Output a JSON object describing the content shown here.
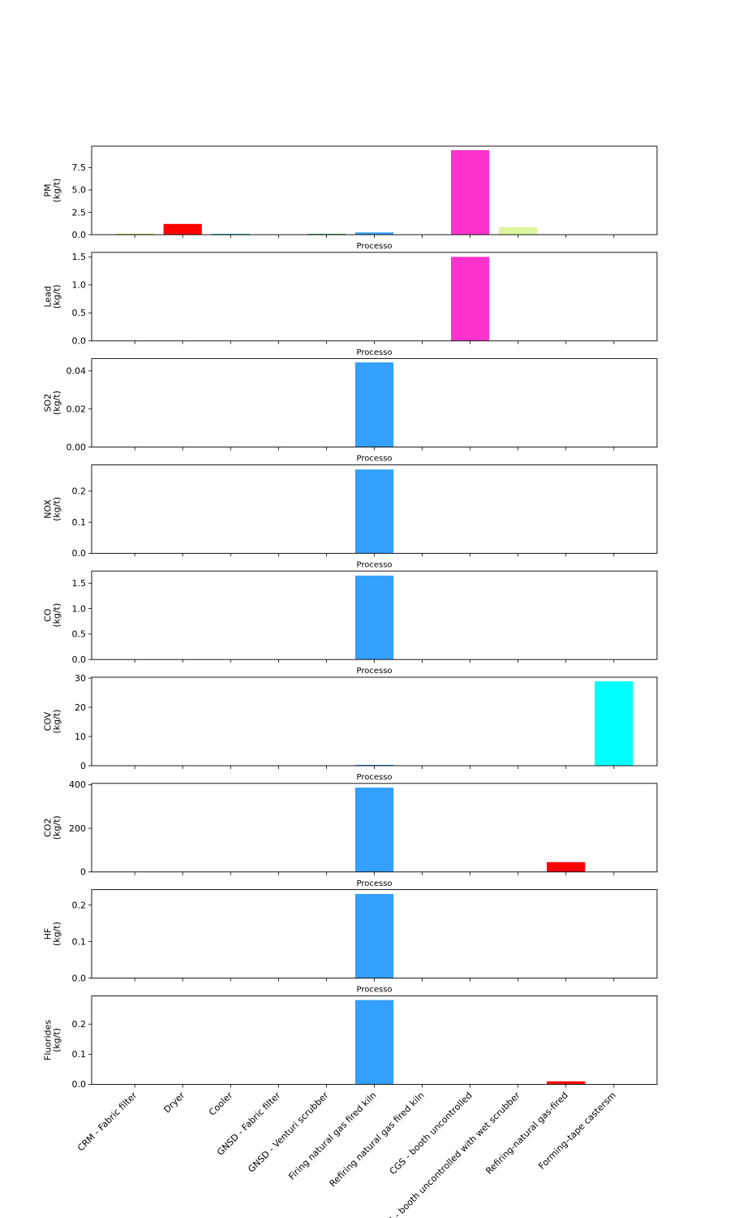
{
  "chart_data": {
    "type": "bar",
    "categories": [
      "CRM - Fabric filter",
      "Dryer",
      "Cooler",
      "GNSD - Fabric filter",
      "GNSD - Venturi scrubber",
      "Firing natural gas fired kiln",
      "Refiring  natural gas fired kiln",
      "CGS - booth uncontrolled",
      "CGS - booth uncontrolled with wet scrubber",
      "Refiring-natural gas-fired",
      "Forming–tape castersm"
    ],
    "colors": [
      "#aacc00",
      "#ff0000",
      "#00aacc",
      "#8800cc",
      "#22aa44",
      "#339fff",
      "#9933cc",
      "#ff33cc",
      "#ddf5a0",
      "#ff0000",
      "#00ffff"
    ],
    "shared_xlabel": "Processo",
    "subplots": [
      {
        "ylabel": "PM\n(kg/t)",
        "ylim": [
          0,
          9.9
        ],
        "ticks": [
          0.0,
          2.5,
          5.0,
          7.5
        ],
        "tick_labels": [
          "0.0",
          "2.5",
          "5.0",
          "7.5"
        ],
        "values": [
          0.03,
          1.2,
          0.04,
          0,
          0.03,
          0.25,
          0,
          9.45,
          0.85,
          0,
          0
        ]
      },
      {
        "ylabel": "Lead\n(kg/t)",
        "ylim": [
          0,
          1.58
        ],
        "ticks": [
          0.0,
          0.5,
          1.0,
          1.5
        ],
        "tick_labels": [
          "0.0",
          "0.5",
          "1.0",
          "1.5"
        ],
        "values": [
          0,
          0,
          0,
          0,
          0,
          0,
          0,
          1.5,
          0,
          0,
          0
        ]
      },
      {
        "ylabel": "SO2\n(kg/t)",
        "ylim": [
          0,
          0.0465
        ],
        "ticks": [
          0.0,
          0.02,
          0.04
        ],
        "tick_labels": [
          "0.00",
          "0.02",
          "0.04"
        ],
        "values": [
          0,
          0,
          0,
          0,
          0,
          0.0445,
          0,
          0,
          0,
          0,
          0
        ]
      },
      {
        "ylabel": "NOX\n(kg/t)",
        "ylim": [
          0,
          0.285
        ],
        "ticks": [
          0.0,
          0.1,
          0.2
        ],
        "tick_labels": [
          "0.0",
          "0.1",
          "0.2"
        ],
        "values": [
          0,
          0,
          0,
          0,
          0,
          0.27,
          0,
          0,
          0,
          0,
          0
        ]
      },
      {
        "ylabel": "CO\n(kg/t)",
        "ylim": [
          0,
          1.74
        ],
        "ticks": [
          0.0,
          0.5,
          1.0,
          1.5
        ],
        "tick_labels": [
          "0.0",
          "0.5",
          "1.0",
          "1.5"
        ],
        "values": [
          0,
          0,
          0,
          0,
          0,
          1.65,
          0,
          0,
          0,
          0,
          0
        ]
      },
      {
        "ylabel": "COV\n(kg/t)",
        "ylim": [
          0,
          30.3
        ],
        "ticks": [
          0,
          10,
          20,
          30
        ],
        "tick_labels": [
          "0",
          "10",
          "20",
          "30"
        ],
        "values": [
          0,
          0,
          0,
          0,
          0,
          0.3,
          0,
          0,
          0,
          0,
          28.9
        ]
      },
      {
        "ylabel": "CO2\n(kg/t)",
        "ylim": [
          0,
          406
        ],
        "ticks": [
          0,
          200,
          400
        ],
        "tick_labels": [
          "0",
          "200",
          "400"
        ],
        "values": [
          0,
          0,
          0,
          0,
          0,
          387,
          0,
          0,
          0,
          45,
          0
        ]
      },
      {
        "ylabel": "HF\n(kg/t)",
        "ylim": [
          0,
          0.242
        ],
        "ticks": [
          0.0,
          0.1,
          0.2
        ],
        "tick_labels": [
          "0.0",
          "0.1",
          "0.2"
        ],
        "values": [
          0,
          0,
          0,
          0,
          0,
          0.23,
          0,
          0,
          0,
          0,
          0
        ]
      },
      {
        "ylabel": "Fluorides\n(kg/t)",
        "ylim": [
          0,
          0.294
        ],
        "ticks": [
          0.0,
          0.1,
          0.2
        ],
        "tick_labels": [
          "0.0",
          "0.1",
          "0.2"
        ],
        "values": [
          0,
          0,
          0,
          0,
          0,
          0.28,
          0,
          0,
          0,
          0.01,
          0
        ]
      }
    ]
  }
}
